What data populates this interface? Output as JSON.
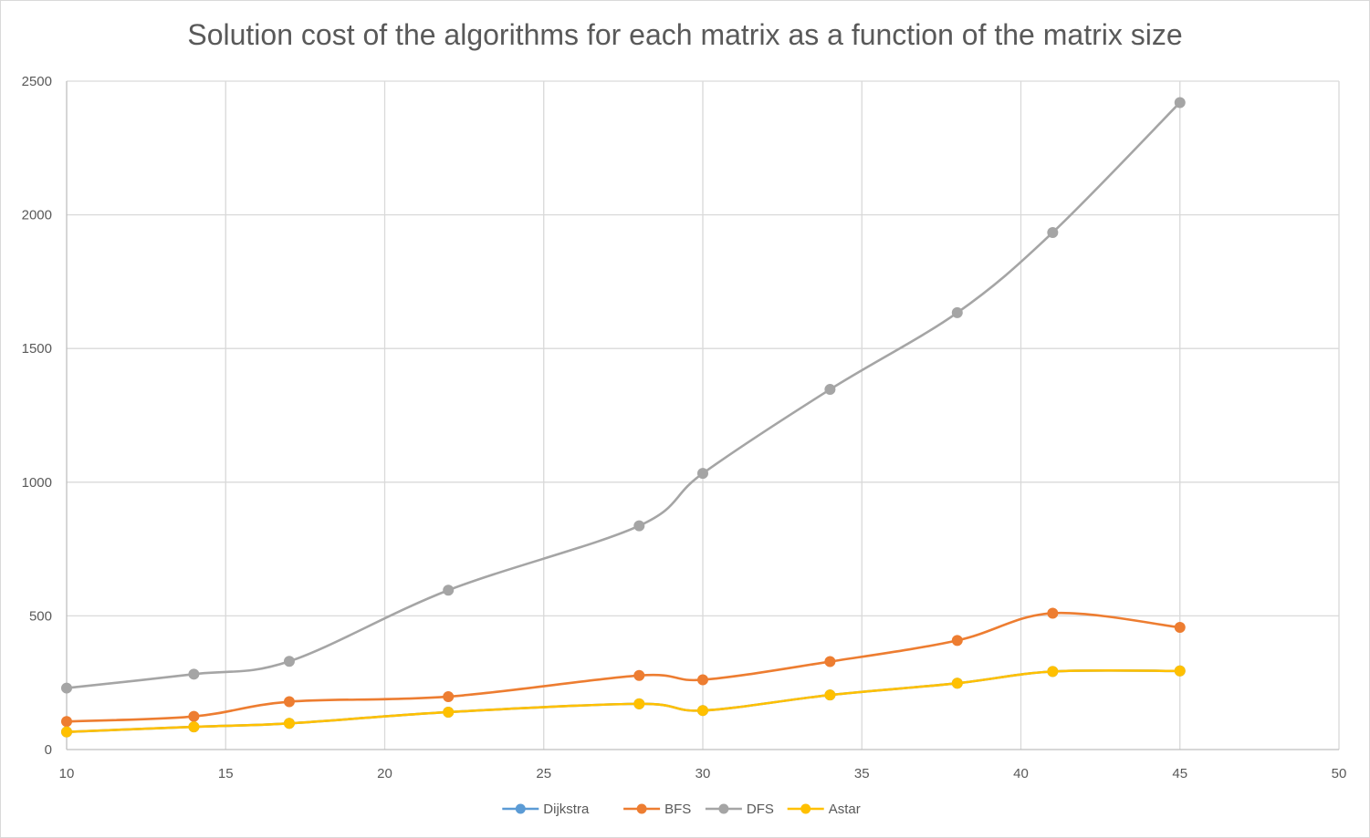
{
  "chart_data": {
    "type": "line",
    "title": "Solution cost of the algorithms for each matrix as a function of the matrix size",
    "xlabel": "",
    "ylabel": "",
    "xlim": [
      10,
      50
    ],
    "ylim": [
      0,
      2500
    ],
    "xticks": [
      10,
      15,
      20,
      25,
      30,
      35,
      40,
      45,
      50
    ],
    "yticks": [
      0,
      500,
      1000,
      1500,
      2000,
      2500
    ],
    "grid": true,
    "legend_position": "bottom",
    "x": [
      10,
      14,
      17,
      22,
      28,
      30,
      34,
      38,
      41,
      45
    ],
    "series": [
      {
        "name": "Dijkstra",
        "color": "#5b9bd5",
        "values": [
          66,
          85,
          98,
          140,
          171,
          146,
          204,
          248,
          292,
          294
        ]
      },
      {
        "name": "BFS",
        "color": "#ed7d31",
        "values": [
          105,
          124,
          179,
          198,
          277,
          261,
          329,
          408,
          510,
          457
        ]
      },
      {
        "name": "DFS",
        "color": "#a5a5a5",
        "values": [
          230,
          282,
          330,
          596,
          837,
          1033,
          1347,
          1634,
          1934,
          2420
        ]
      },
      {
        "name": "Astar",
        "color": "#ffc000",
        "values": [
          66,
          85,
          98,
          140,
          171,
          146,
          204,
          248,
          292,
          294
        ]
      }
    ]
  }
}
